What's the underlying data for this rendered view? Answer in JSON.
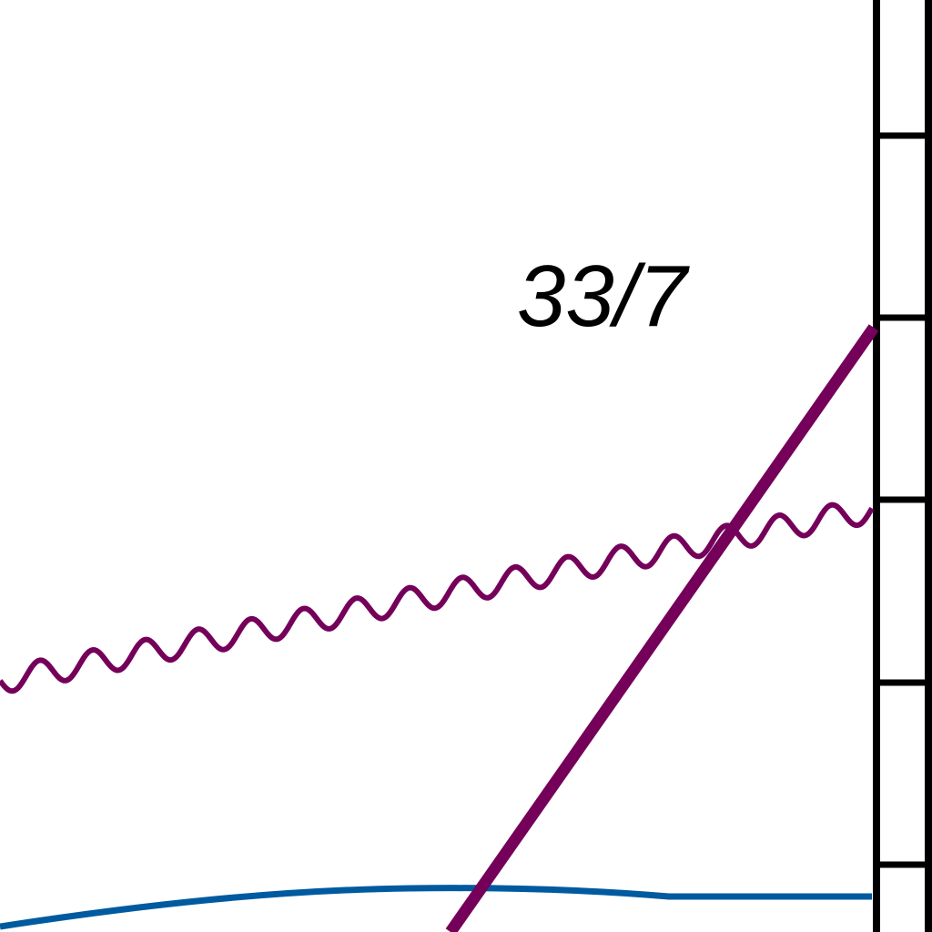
{
  "labels": {
    "line_label": "33/7"
  },
  "colors": {
    "background": "#ffffff",
    "frame": "#000000",
    "purple": "#74005a",
    "blue": "#005aa0"
  }
}
